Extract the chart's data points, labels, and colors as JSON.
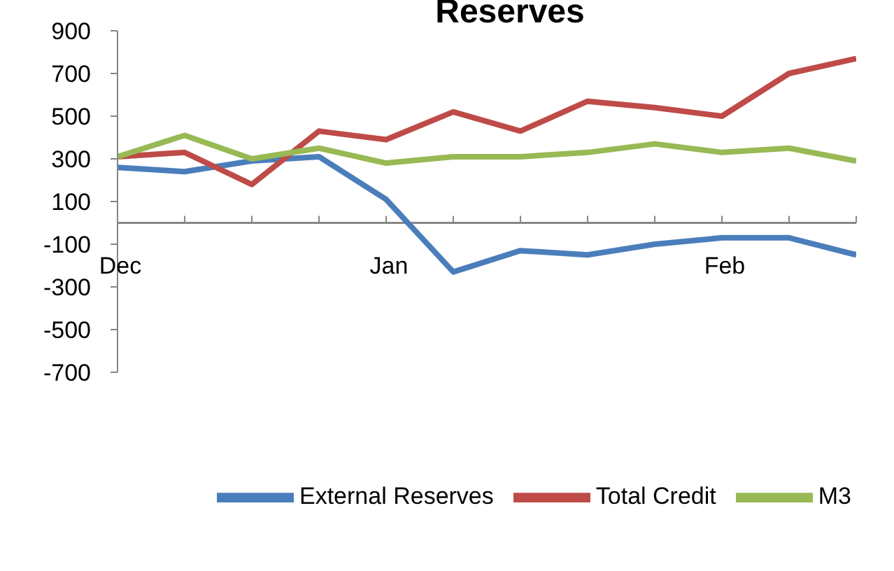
{
  "chart_data": {
    "type": "line",
    "title": "Reserves",
    "categories": [
      "Dec",
      null,
      null,
      null,
      "Jan",
      null,
      null,
      null,
      null,
      "Feb",
      null,
      null
    ],
    "series": [
      {
        "name": "External Reserves",
        "color": "#4a7ebb",
        "values": [
          260,
          240,
          290,
          310,
          110,
          -230,
          -130,
          -150,
          -100,
          -70,
          -70,
          -150
        ]
      },
      {
        "name": "Total Credit",
        "color": "#be4b48",
        "values": [
          310,
          330,
          180,
          430,
          390,
          520,
          430,
          570,
          540,
          500,
          700,
          770
        ]
      },
      {
        "name": "M3",
        "color": "#98b954",
        "values": [
          310,
          410,
          300,
          350,
          280,
          310,
          310,
          330,
          370,
          330,
          350,
          290
        ]
      }
    ],
    "ylim": [
      -700,
      900
    ],
    "yticks": [
      -700,
      -500,
      -300,
      -100,
      100,
      300,
      500,
      700,
      900
    ],
    "legend": "bottom",
    "marker": "none",
    "line_style": "solid"
  }
}
